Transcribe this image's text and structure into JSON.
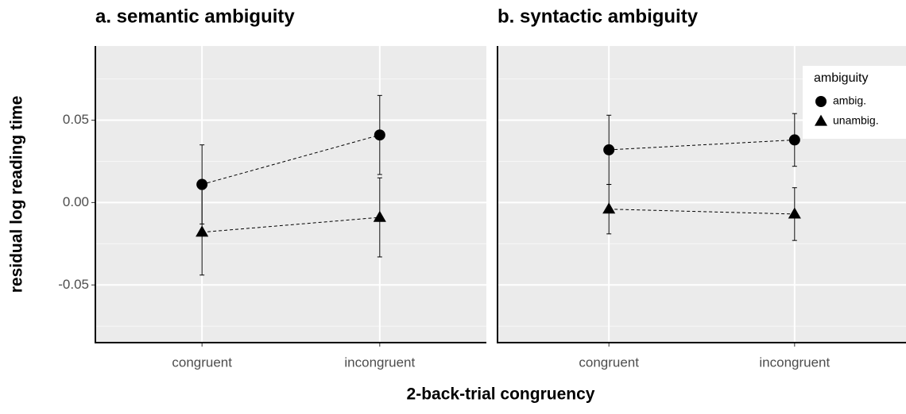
{
  "ylabel": "residual log reading time",
  "xlabel": "2-back-trial congruency",
  "chart_data": [
    {
      "type": "errorbar-line",
      "title": "a. semantic ambiguity",
      "categories": [
        "congruent",
        "incongruent"
      ],
      "ylim": [
        -0.085,
        0.095
      ],
      "yticks": [
        {
          "value": -0.05,
          "label": "-0.05"
        },
        {
          "value": 0,
          "label": "0.00"
        },
        {
          "value": 0.05,
          "label": "0.05"
        }
      ],
      "yminor": [
        -0.075,
        -0.025,
        0.025,
        0.075
      ],
      "grid": true,
      "series": [
        {
          "name": "ambig.",
          "marker": "circle",
          "color": "#000000",
          "values": [
            0.011,
            0.041
          ],
          "errors": [
            0.024,
            0.024
          ]
        },
        {
          "name": "unambig.",
          "marker": "triangle",
          "color": "#000000",
          "values": [
            -0.018,
            -0.009
          ],
          "errors": [
            0.026,
            0.024
          ]
        }
      ]
    },
    {
      "type": "errorbar-line",
      "title": "b. syntactic ambiguity",
      "categories": [
        "congruent",
        "incongruent"
      ],
      "ylim": [
        -0.085,
        0.095
      ],
      "yminor": [
        -0.075,
        -0.025,
        0.025,
        0.075
      ],
      "grid": true,
      "legend": {
        "title": "ambiguity",
        "position": "top-right"
      },
      "series": [
        {
          "name": "ambig.",
          "marker": "circle",
          "color": "#000000",
          "values": [
            0.032,
            0.038
          ],
          "errors": [
            0.021,
            0.016
          ]
        },
        {
          "name": "unambig.",
          "marker": "triangle",
          "color": "#000000",
          "values": [
            -0.004,
            -0.007
          ],
          "errors": [
            0.015,
            0.016
          ]
        }
      ]
    }
  ]
}
